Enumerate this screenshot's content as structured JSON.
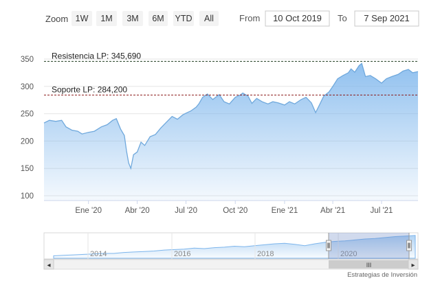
{
  "range_selector": {
    "zoom_label": "Zoom",
    "buttons": [
      "1W",
      "1M",
      "3M",
      "6M",
      "YTD",
      "All"
    ],
    "from_label": "From",
    "from_value": "10 Oct 2019",
    "to_label": "To",
    "to_value": "7 Sep 2021"
  },
  "navigator": {
    "year_labels": [
      "2014",
      "2016",
      "2018",
      "2020"
    ],
    "scroll_grip": "III",
    "left_arrow": "◂",
    "right_arrow": "▸"
  },
  "credit": "Estrategias de Inversión",
  "chart_data": {
    "type": "area",
    "title": "",
    "xlabel": "",
    "ylabel": "",
    "ylim": [
      100,
      350
    ],
    "yticks": [
      100,
      150,
      200,
      250,
      300,
      350
    ],
    "x_range": [
      "2019-10-10",
      "2021-09-07"
    ],
    "xticks": [
      {
        "date": "2020-01-01",
        "label": "Ene '20"
      },
      {
        "date": "2020-04-01",
        "label": "Abr '20"
      },
      {
        "date": "2020-07-01",
        "label": "Jul '20"
      },
      {
        "date": "2020-10-01",
        "label": "Oct '20"
      },
      {
        "date": "2021-01-01",
        "label": "Ene '21"
      },
      {
        "date": "2021-04-01",
        "label": "Abr '21"
      },
      {
        "date": "2021-07-01",
        "label": "Jul '21"
      }
    ],
    "series": [
      {
        "color": "#6fa8dc",
        "points": [
          [
            "2019-10-10",
            233
          ],
          [
            "2019-10-20",
            238
          ],
          [
            "2019-11-01",
            236
          ],
          [
            "2019-11-12",
            238
          ],
          [
            "2019-11-20",
            226
          ],
          [
            "2019-12-01",
            220
          ],
          [
            "2019-12-12",
            218
          ],
          [
            "2019-12-20",
            213
          ],
          [
            "2020-01-01",
            216
          ],
          [
            "2020-01-12",
            218
          ],
          [
            "2020-01-25",
            226
          ],
          [
            "2020-02-05",
            230
          ],
          [
            "2020-02-15",
            238
          ],
          [
            "2020-02-22",
            241
          ],
          [
            "2020-03-01",
            222
          ],
          [
            "2020-03-08",
            210
          ],
          [
            "2020-03-12",
            182
          ],
          [
            "2020-03-16",
            160
          ],
          [
            "2020-03-20",
            150
          ],
          [
            "2020-03-25",
            175
          ],
          [
            "2020-04-01",
            180
          ],
          [
            "2020-04-08",
            198
          ],
          [
            "2020-04-15",
            192
          ],
          [
            "2020-04-25",
            208
          ],
          [
            "2020-05-05",
            212
          ],
          [
            "2020-05-15",
            224
          ],
          [
            "2020-05-25",
            234
          ],
          [
            "2020-06-05",
            245
          ],
          [
            "2020-06-15",
            240
          ],
          [
            "2020-06-25",
            248
          ],
          [
            "2020-07-01",
            251
          ],
          [
            "2020-07-10",
            255
          ],
          [
            "2020-07-20",
            262
          ],
          [
            "2020-07-25",
            268
          ],
          [
            "2020-08-01",
            280
          ],
          [
            "2020-08-10",
            286
          ],
          [
            "2020-08-20",
            276
          ],
          [
            "2020-09-01",
            285
          ],
          [
            "2020-09-10",
            272
          ],
          [
            "2020-09-20",
            268
          ],
          [
            "2020-10-01",
            280
          ],
          [
            "2020-10-10",
            284
          ],
          [
            "2020-10-15",
            288
          ],
          [
            "2020-10-25",
            282
          ],
          [
            "2020-11-01",
            269
          ],
          [
            "2020-11-10",
            278
          ],
          [
            "2020-11-20",
            272
          ],
          [
            "2020-12-01",
            268
          ],
          [
            "2020-12-10",
            272
          ],
          [
            "2020-12-20",
            270
          ],
          [
            "2021-01-01",
            266
          ],
          [
            "2021-01-10",
            272
          ],
          [
            "2021-01-20",
            268
          ],
          [
            "2021-02-01",
            276
          ],
          [
            "2021-02-10",
            280
          ],
          [
            "2021-02-20",
            270
          ],
          [
            "2021-02-28",
            252
          ],
          [
            "2021-03-08",
            268
          ],
          [
            "2021-03-15",
            282
          ],
          [
            "2021-03-25",
            290
          ],
          [
            "2021-04-01",
            300
          ],
          [
            "2021-04-10",
            314
          ],
          [
            "2021-04-20",
            320
          ],
          [
            "2021-04-30",
            325
          ],
          [
            "2021-05-05",
            332
          ],
          [
            "2021-05-12",
            326
          ],
          [
            "2021-05-20",
            338
          ],
          [
            "2021-05-25",
            342
          ],
          [
            "2021-06-01",
            318
          ],
          [
            "2021-06-10",
            320
          ],
          [
            "2021-06-20",
            314
          ],
          [
            "2021-07-01",
            306
          ],
          [
            "2021-07-10",
            314
          ],
          [
            "2021-07-20",
            318
          ],
          [
            "2021-08-01",
            322
          ],
          [
            "2021-08-10",
            328
          ],
          [
            "2021-08-20",
            331
          ],
          [
            "2021-08-28",
            325
          ],
          [
            "2021-09-07",
            327
          ]
        ]
      }
    ],
    "reference_lines": [
      {
        "label": "Resistencia LP: 345,690",
        "value": 345.69,
        "color": "#1f3d1f"
      },
      {
        "label": "Soporte LP: 284,200",
        "value": 284.2,
        "color": "#8b1a1a"
      }
    ],
    "grid": true,
    "legend": "none"
  }
}
